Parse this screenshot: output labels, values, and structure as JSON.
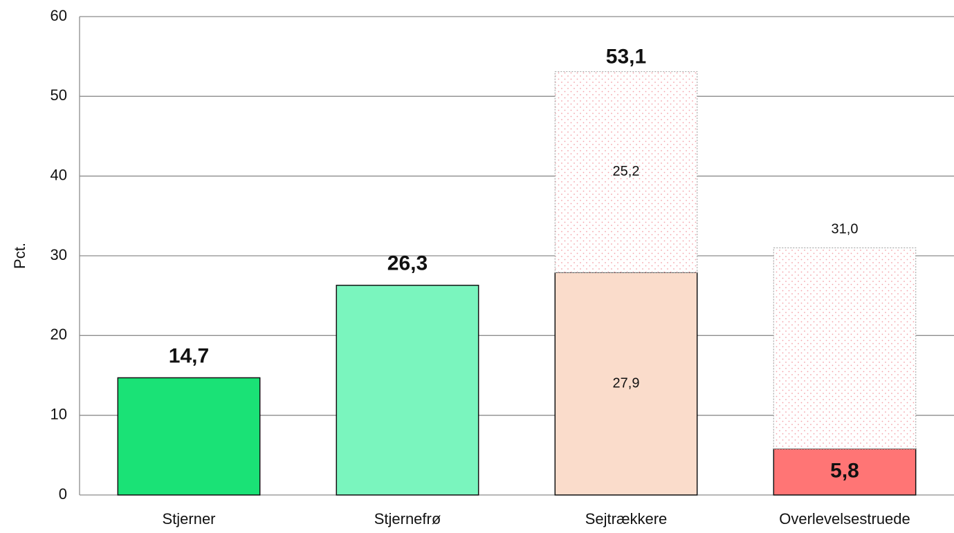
{
  "chart_data": {
    "type": "stacked_bar",
    "y_label": "Pct.",
    "categories": [
      "Stjerner",
      "Stjernefrø",
      "Sejtrækkere",
      "Overlevelsestruede"
    ],
    "series": [
      {
        "colors": [
          "#1ae276",
          "#7af5be",
          "#fadccb",
          "#ff7575"
        ],
        "values": [
          14.7,
          26.3,
          27.9,
          5.8
        ],
        "value_labels": [
          "14,7",
          "26,3",
          "27,9",
          "5,8"
        ]
      },
      {
        "color": "#f4a0a8",
        "pattern": "dotted",
        "values": [
          null,
          null,
          25.2,
          25.2
        ],
        "value_labels": [
          null,
          null,
          "25,2",
          null
        ]
      }
    ],
    "totals": [
      null,
      null,
      53.1,
      31.0
    ],
    "total_labels": [
      null,
      null,
      "53,1",
      "31,0"
    ],
    "ylim": [
      0,
      60
    ],
    "yticks": [
      0,
      10,
      20,
      30,
      40,
      50,
      60
    ],
    "grid": true
  }
}
